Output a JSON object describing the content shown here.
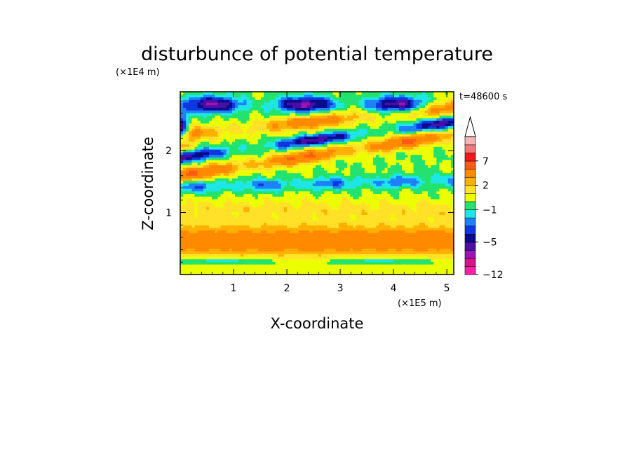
{
  "chart_data": {
    "type": "heatmap",
    "title": "disturbunce of potential temperature",
    "xlabel": "X-coordinate",
    "ylabel": "Z-coordinate",
    "x_units": "(×1E5 m)",
    "y_units": "(×1E4 m)",
    "time_label": "t=48600 s",
    "xlim": [
      0,
      5.13
    ],
    "ylim": [
      0,
      2.95
    ],
    "x_ticks": [
      "1",
      "2",
      "3",
      "4",
      "5"
    ],
    "y_ticks": [
      "1",
      "2"
    ],
    "colorbar": {
      "tick_labels": [
        "7",
        "2",
        "−1",
        "−5",
        "−12"
      ],
      "levels": [
        -12,
        -10,
        -8,
        -6,
        -5,
        -4,
        -3,
        -2,
        -1,
        0,
        1,
        2,
        3,
        5,
        7,
        9,
        11
      ],
      "colors": [
        "#ff1fa6",
        "#d4148a",
        "#9c14b4",
        "#4b0fa6",
        "#0a0a8c",
        "#0f37e0",
        "#1e82ff",
        "#1fe6e6",
        "#23e36e",
        "#ecff00",
        "#ffe228",
        "#ffb000",
        "#ff8a00",
        "#ff5a14",
        "#f01a1a",
        "#f27878",
        "#f6b5b5"
      ],
      "extend_max": true
    }
  }
}
